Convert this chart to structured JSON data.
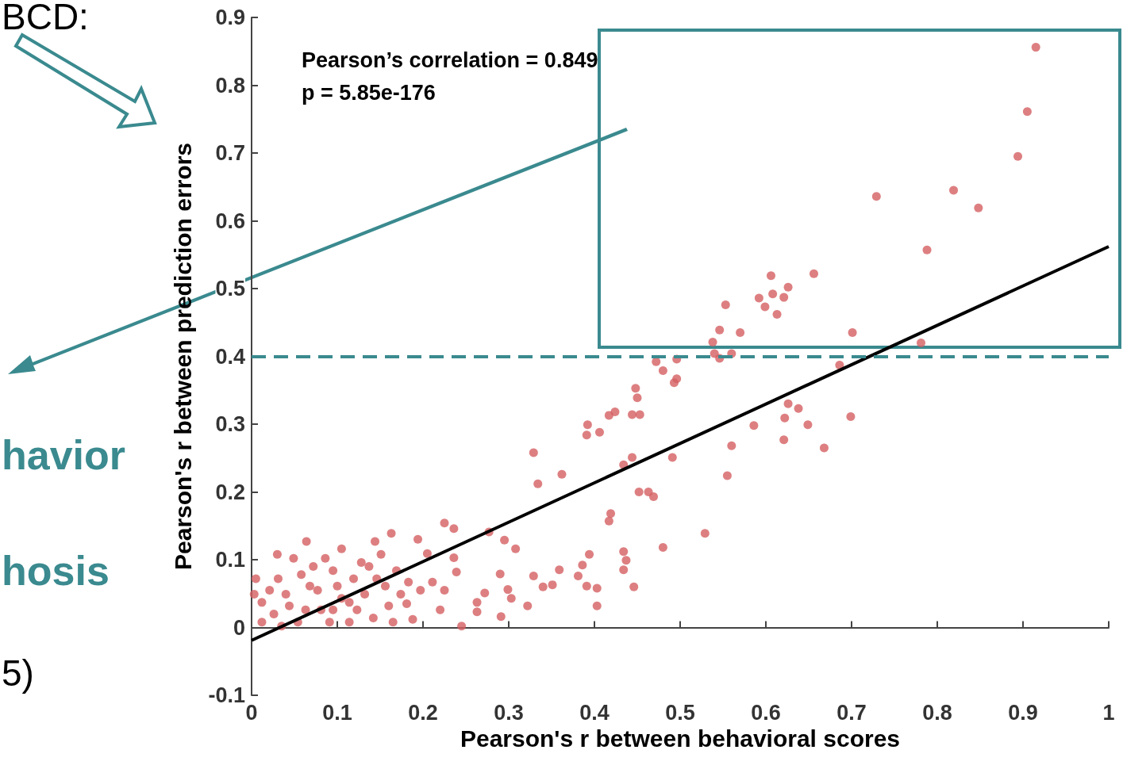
{
  "chart_data": {
    "type": "scatter",
    "xlabel": "Pearson's r between behavioral scores",
    "ylabel": "Pearson's r between prediction errors",
    "annotations": [
      "Pearson’s correlation = 0.849",
      "p = 5.85e-176",
      "BCD:",
      "havior",
      "hosis",
      "5)"
    ],
    "xlim": [
      0,
      1
    ],
    "ylim": [
      -0.1,
      0.9
    ],
    "xticks": [
      0,
      0.1,
      0.2,
      0.3,
      0.4,
      0.5,
      0.6,
      0.7,
      0.8,
      0.9,
      1
    ],
    "yticks": [
      -0.1,
      0,
      0.1,
      0.2,
      0.3,
      0.4,
      0.5,
      0.6,
      0.7,
      0.8,
      0.9
    ],
    "grid": false,
    "marker": "circle",
    "ref_lines": [
      {
        "axis": "y",
        "value": 0.4,
        "color": "#3a8a8f",
        "line_style": "dashed"
      }
    ],
    "series": [
      {
        "color": "#d45f62",
        "x": [
          0.915,
          0.905,
          0.894,
          0.729,
          0.819,
          0.848,
          0.788,
          0.701,
          0.781,
          0.686,
          0.699,
          0.668,
          0.649,
          0.638,
          0.626,
          0.622,
          0.621,
          0.586,
          0.56,
          0.555,
          0.529,
          0.606,
          0.608,
          0.592,
          0.599,
          0.613,
          0.621,
          0.626,
          0.656,
          0.553,
          0.546,
          0.57,
          0.538,
          0.54,
          0.546,
          0.56,
          0.496,
          0.472,
          0.48,
          0.496,
          0.493,
          0.448,
          0.45,
          0.444,
          0.453,
          0.424,
          0.417,
          0.392,
          0.391,
          0.406,
          0.444,
          0.434,
          0.491,
          0.452,
          0.463,
          0.469,
          0.419,
          0.417,
          0.329,
          0.334,
          0.362,
          0.48,
          0.434,
          0.394,
          0.437,
          0.434,
          0.446,
          0.403,
          0.386,
          0.381,
          0.391,
          0.403,
          0.359,
          0.329,
          0.34,
          0.351,
          0.29,
          0.308,
          0.295,
          0.277,
          0.236,
          0.225,
          0.194,
          0.205,
          0.236,
          0.239,
          0.291,
          0.245,
          0.263,
          0.272,
          0.299,
          0.303,
          0.322,
          0.263,
          0.225,
          0.22,
          0.181,
          0.188,
          0.163,
          0.144,
          0.105,
          0.064,
          0.03,
          0.005,
          0.012,
          0.026,
          0.04,
          0.054,
          0.068,
          0.081,
          0.095,
          0.114,
          0.128,
          0.142,
          0.156,
          0.169,
          0.183,
          0.012,
          0.031,
          0.044,
          0.058,
          0.077,
          0.091,
          0.105,
          0.119,
          0.132,
          0.146,
          0.16,
          0.174,
          0.003,
          0.021,
          0.072,
          0.086,
          0.1,
          0.123,
          0.137,
          0.151,
          0.165,
          0.197,
          0.211,
          0.049,
          0.035,
          0.114,
          0.063,
          0.095
        ],
        "values": [
          0.856,
          0.761,
          0.695,
          0.636,
          0.645,
          0.619,
          0.557,
          0.435,
          0.42,
          0.387,
          0.311,
          0.265,
          0.299,
          0.323,
          0.33,
          0.309,
          0.277,
          0.298,
          0.268,
          0.224,
          0.139,
          0.519,
          0.492,
          0.486,
          0.473,
          0.462,
          0.487,
          0.502,
          0.522,
          0.476,
          0.439,
          0.435,
          0.421,
          0.404,
          0.397,
          0.404,
          0.396,
          0.392,
          0.379,
          0.367,
          0.361,
          0.353,
          0.339,
          0.314,
          0.314,
          0.318,
          0.313,
          0.299,
          0.284,
          0.288,
          0.251,
          0.24,
          0.251,
          0.2,
          0.2,
          0.193,
          0.168,
          0.157,
          0.258,
          0.212,
          0.226,
          0.118,
          0.112,
          0.108,
          0.099,
          0.085,
          0.06,
          0.032,
          0.092,
          0.076,
          0.061,
          0.058,
          0.085,
          0.076,
          0.06,
          0.063,
          0.079,
          0.116,
          0.129,
          0.141,
          0.146,
          0.154,
          0.13,
          0.109,
          0.103,
          0.082,
          0.016,
          0.002,
          0.037,
          0.051,
          0.056,
          0.043,
          0.032,
          0.023,
          0.055,
          0.026,
          0.035,
          0.012,
          0.139,
          0.127,
          0.116,
          0.127,
          0.108,
          0.072,
          0.037,
          0.02,
          0.049,
          0.008,
          0.061,
          0.026,
          0.084,
          0.037,
          0.096,
          0.014,
          0.061,
          0.084,
          0.067,
          0.008,
          0.072,
          0.032,
          0.078,
          0.055,
          0.008,
          0.043,
          0.072,
          0.049,
          0.072,
          0.032,
          0.049,
          0.049,
          0.055,
          0.09,
          0.102,
          0.061,
          0.026,
          0.09,
          0.108,
          0.008,
          0.055,
          0.067,
          0.102,
          0.002,
          0.008,
          0.026,
          0.026
        ]
      },
      {
        "type": "line",
        "color": "#000000",
        "marker": "none",
        "x": [
          0,
          1
        ],
        "values": [
          -0.019,
          0.562
        ]
      }
    ]
  }
}
